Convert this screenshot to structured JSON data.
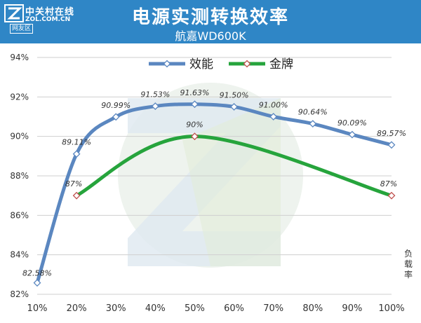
{
  "header": {
    "title": "电源实测转换效率",
    "subtitle": "航嘉WD600K",
    "logo_cn": "中关村在线",
    "logo_en": "ZOL.COM.CN",
    "logo_tag": "网友区"
  },
  "chart_data": {
    "type": "line",
    "categories": [
      "10%",
      "20%",
      "30%",
      "40%",
      "50%",
      "60%",
      "70%",
      "80%",
      "90%",
      "100%"
    ],
    "series": [
      {
        "name": "效能",
        "color": "#5b87c0",
        "values": [
          82.58,
          89.11,
          90.99,
          91.53,
          91.63,
          91.5,
          91.0,
          90.64,
          90.09,
          89.57
        ],
        "labels": [
          "82.58%",
          "89.11%",
          "90.99%",
          "91.53%",
          "91.63%",
          "91.50%",
          "91.00%",
          "90.64%",
          "90.09%",
          "89.57%"
        ]
      },
      {
        "name": "金牌",
        "color": "#26a43c",
        "values": [
          null,
          87,
          null,
          null,
          90,
          null,
          null,
          null,
          null,
          87
        ],
        "labels": [
          null,
          "87%",
          null,
          null,
          "90%",
          null,
          null,
          null,
          null,
          "87%"
        ]
      }
    ],
    "y_ticks": [
      "82%",
      "84%",
      "86%",
      "88%",
      "90%",
      "92%",
      "94%"
    ],
    "ylim": [
      82,
      94
    ],
    "ylabel": "负载率",
    "grid": "horizontal",
    "legend_position": "top-center",
    "smooth": true
  }
}
